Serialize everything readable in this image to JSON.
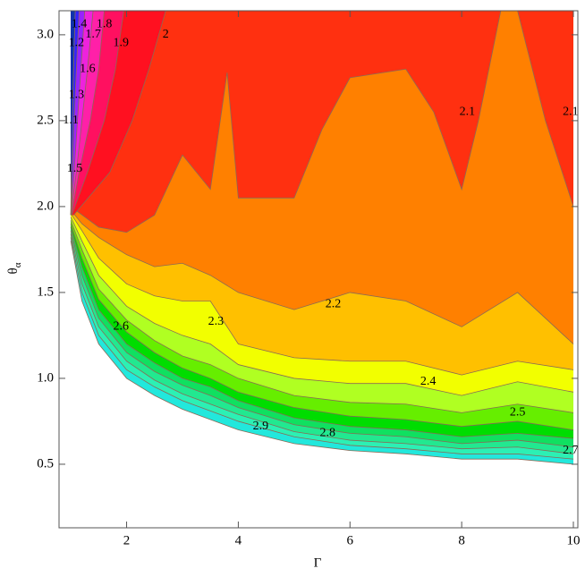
{
  "chart_data": {
    "type": "contour",
    "xlabel": "Γ",
    "ylabel": {
      "base": "θ",
      "subscript": "α"
    },
    "xlim": [
      0.79,
      10.08
    ],
    "ylim": [
      0.13,
      3.14
    ],
    "xticks": [
      2,
      4,
      6,
      8,
      10
    ],
    "yticks": [
      0.5,
      {
        "value": 1,
        "label": "1.0"
      },
      1.5,
      {
        "value": 2,
        "label": "2.0"
      },
      2.5,
      {
        "value": 3,
        "label": "3.0"
      }
    ],
    "line_color": "#8a6a55",
    "bands": [
      {
        "color": "#22e8dc",
        "x": [
          1,
          1.2,
          1.5,
          2,
          2.5,
          3,
          3.5,
          4,
          5,
          6,
          7,
          8,
          9,
          10
        ],
        "y": [
          1.8,
          1.45,
          1.2,
          1.0,
          0.9,
          0.82,
          0.76,
          0.7,
          0.62,
          0.58,
          0.56,
          0.53,
          0.53,
          0.5
        ]
      },
      {
        "color": "#2cf0b4",
        "x": [
          1,
          1.2,
          1.5,
          2,
          2.5,
          3,
          3.5,
          4,
          5,
          6,
          7,
          8,
          9,
          10
        ],
        "y": [
          1.82,
          1.5,
          1.25,
          1.05,
          0.95,
          0.87,
          0.81,
          0.75,
          0.66,
          0.61,
          0.59,
          0.56,
          0.56,
          0.53
        ]
      },
      {
        "color": "#22e890",
        "x": [
          1,
          1.2,
          1.5,
          2,
          2.5,
          3,
          3.5,
          4,
          5,
          6,
          7,
          8,
          9,
          10
        ],
        "y": [
          1.84,
          1.55,
          1.3,
          1.1,
          0.99,
          0.91,
          0.85,
          0.79,
          0.69,
          0.64,
          0.62,
          0.59,
          0.6,
          0.56
        ]
      },
      {
        "color": "#10e060",
        "x": [
          1,
          1.2,
          1.5,
          2,
          2.5,
          3,
          3.5,
          4,
          5,
          6,
          7,
          8,
          9,
          10
        ],
        "y": [
          1.86,
          1.6,
          1.35,
          1.15,
          1.04,
          0.96,
          0.9,
          0.83,
          0.73,
          0.68,
          0.66,
          0.62,
          0.64,
          0.6
        ]
      },
      {
        "color": "#00dd00",
        "x": [
          1,
          1.2,
          1.5,
          2,
          2.5,
          3,
          3.5,
          4,
          5,
          6,
          7,
          8,
          9,
          10
        ],
        "y": [
          1.88,
          1.65,
          1.4,
          1.2,
          1.09,
          1.0,
          0.95,
          0.87,
          0.77,
          0.72,
          0.7,
          0.66,
          0.68,
          0.65
        ]
      },
      {
        "color": "#66ee00",
        "x": [
          1,
          1.2,
          1.5,
          2,
          2.5,
          3,
          3.5,
          4,
          5,
          6,
          7,
          8,
          9,
          10
        ],
        "y": [
          1.9,
          1.7,
          1.46,
          1.27,
          1.15,
          1.06,
          1.0,
          0.92,
          0.83,
          0.78,
          0.76,
          0.72,
          0.75,
          0.7
        ]
      },
      {
        "color": "#b0ff22",
        "x": [
          1,
          1.2,
          1.5,
          2,
          2.5,
          3,
          3.5,
          4,
          5,
          6,
          7,
          8,
          9,
          10
        ],
        "y": [
          1.92,
          1.75,
          1.52,
          1.34,
          1.22,
          1.13,
          1.08,
          1.0,
          0.9,
          0.86,
          0.85,
          0.8,
          0.85,
          0.8
        ]
      },
      {
        "color": "#f2ff00",
        "x": [
          1,
          1.2,
          1.5,
          2,
          2.5,
          3,
          3.5,
          4,
          5,
          6,
          7,
          8,
          9,
          10
        ],
        "y": [
          1.94,
          1.8,
          1.6,
          1.42,
          1.32,
          1.25,
          1.2,
          1.08,
          1.0,
          0.97,
          0.97,
          0.9,
          0.98,
          0.92
        ]
      },
      {
        "color": "#ffc000",
        "x": [
          1,
          1.2,
          1.5,
          2,
          2.5,
          3,
          3.5,
          4,
          5,
          6,
          7,
          8,
          9,
          10
        ],
        "y": [
          1.96,
          1.86,
          1.7,
          1.55,
          1.48,
          1.45,
          1.45,
          1.2,
          1.12,
          1.1,
          1.1,
          1.02,
          1.1,
          1.05
        ]
      },
      {
        "color": "#ff8000",
        "x": [
          1,
          1.2,
          1.5,
          2,
          2.5,
          3,
          3.5,
          4,
          5,
          6,
          7,
          8,
          9,
          10
        ],
        "y": [
          1.98,
          1.9,
          1.82,
          1.72,
          1.65,
          1.67,
          1.6,
          1.5,
          1.4,
          1.5,
          1.45,
          1.3,
          1.5,
          1.2
        ]
      },
      {
        "color": "#ff3010",
        "x": [
          1,
          1.5,
          2,
          2.5,
          3,
          3.5,
          3.8,
          4,
          5,
          5.5,
          6,
          7,
          7.5,
          8,
          8.3,
          8.7,
          9,
          9.5,
          10
        ],
        "y": [
          2.0,
          1.88,
          1.85,
          1.95,
          2.3,
          2.1,
          2.78,
          2.05,
          2.05,
          2.45,
          2.75,
          2.8,
          2.55,
          2.1,
          2.5,
          3.14,
          3.14,
          2.5,
          2.0
        ]
      }
    ],
    "left_edge": 1,
    "left_bands": [
      {
        "color": "#ff1020",
        "y": [
          1.95,
          2.2,
          2.5,
          2.8,
          3.14
        ],
        "x": [
          1.05,
          1.7,
          2.1,
          2.4,
          2.7
        ]
      },
      {
        "color": "#ff1060",
        "y": [
          1.95,
          2.2,
          2.5,
          2.8,
          3.14
        ],
        "x": [
          1.02,
          1.3,
          1.6,
          1.8,
          1.95
        ]
      },
      {
        "color": "#ff20a8",
        "y": [
          1.95,
          2.2,
          2.5,
          2.8,
          3.14
        ],
        "x": [
          1.01,
          1.15,
          1.35,
          1.5,
          1.6
        ]
      },
      {
        "color": "#ee22dd",
        "y": [
          1.95,
          2.2,
          2.5,
          2.8,
          3.14
        ],
        "x": [
          1.0,
          1.1,
          1.2,
          1.3,
          1.4
        ]
      },
      {
        "color": "#9922ff",
        "y": [
          1.95,
          2.2,
          2.5,
          2.8,
          3.14
        ],
        "x": [
          1.0,
          1.06,
          1.12,
          1.18,
          1.25
        ]
      },
      {
        "color": "#3322ff",
        "y": [
          1.95,
          2.2,
          2.5,
          2.8,
          3.14
        ],
        "x": [
          1.0,
          1.03,
          1.06,
          1.1,
          1.15
        ]
      },
      {
        "color": "#1133aa",
        "y": [
          1.95,
          2.2,
          2.5,
          2.8,
          3.14
        ],
        "x": [
          1.0,
          1.01,
          1.03,
          1.05,
          1.08
        ]
      }
    ],
    "contour_labels": [
      {
        "text": "1.4",
        "x": 1.15,
        "y": 3.06
      },
      {
        "text": "1.8",
        "x": 1.6,
        "y": 3.06
      },
      {
        "text": "1.2",
        "x": 1.1,
        "y": 2.95
      },
      {
        "text": "1.7",
        "x": 1.4,
        "y": 3.0
      },
      {
        "text": "1.9",
        "x": 1.9,
        "y": 2.95
      },
      {
        "text": "2",
        "x": 2.7,
        "y": 3.0
      },
      {
        "text": "1.6",
        "x": 1.3,
        "y": 2.8
      },
      {
        "text": "1.3",
        "x": 1.1,
        "y": 2.65
      },
      {
        "text": "1.1",
        "x": 1.0,
        "y": 2.5
      },
      {
        "text": "1.5",
        "x": 1.07,
        "y": 2.22
      },
      {
        "text": "2.1",
        "x": 8.1,
        "y": 2.55
      },
      {
        "text": "2.1",
        "x": 9.95,
        "y": 2.55
      },
      {
        "text": "2.2",
        "x": 5.7,
        "y": 1.43
      },
      {
        "text": "2.3",
        "x": 3.6,
        "y": 1.33
      },
      {
        "text": "2.6",
        "x": 1.9,
        "y": 1.3
      },
      {
        "text": "2.4",
        "x": 7.4,
        "y": 0.98
      },
      {
        "text": "2.5",
        "x": 9.0,
        "y": 0.8
      },
      {
        "text": "2.9",
        "x": 4.4,
        "y": 0.72
      },
      {
        "text": "2.8",
        "x": 5.6,
        "y": 0.68
      },
      {
        "text": "2.7",
        "x": 9.95,
        "y": 0.58
      }
    ]
  }
}
